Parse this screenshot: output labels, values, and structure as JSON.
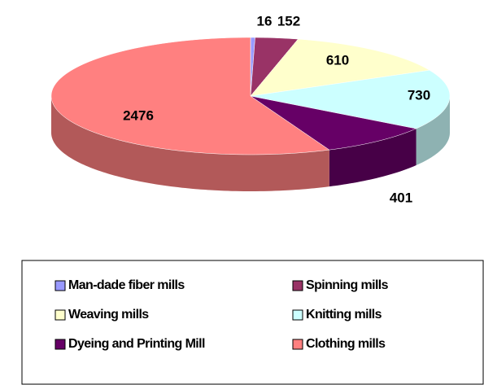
{
  "chart_data": {
    "type": "pie3d",
    "categories": [
      "Man-dade fiber mills",
      "Spinning mills",
      "Weaving mills",
      "Knitting mills",
      "Dyeing and Printing Mill",
      "Clothing mills"
    ],
    "values": [
      16,
      152,
      610,
      730,
      401,
      2476
    ],
    "colors": [
      "#9999ff",
      "#993366",
      "#ffffcc",
      "#ccffff",
      "#660066",
      "#ff8080"
    ],
    "legend": "bottom"
  }
}
